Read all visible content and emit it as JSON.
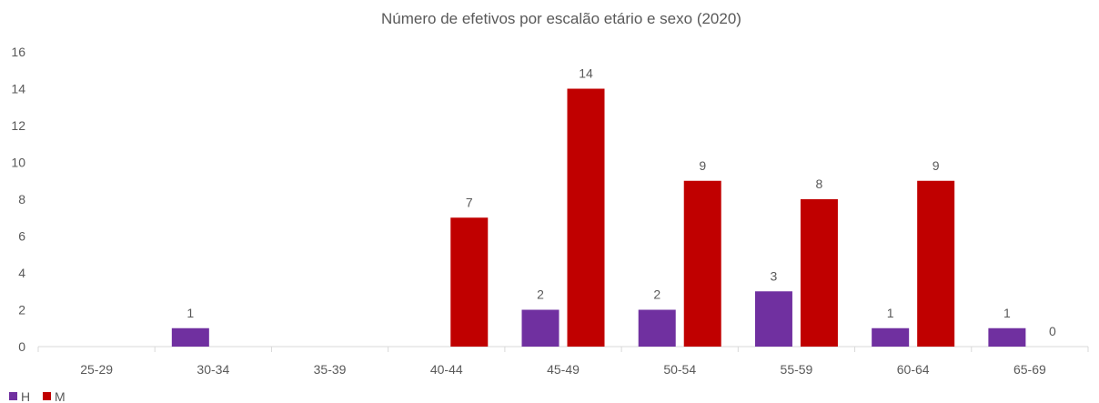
{
  "chart_data": {
    "type": "bar",
    "title": "Número de efetivos por escalão etário e sexo (2020)",
    "categories": [
      "25-29",
      "30-34",
      "35-39",
      "40-44",
      "45-49",
      "50-54",
      "55-59",
      "60-64",
      "65-69"
    ],
    "series": [
      {
        "name": "H",
        "color": "#7030A0",
        "values": [
          null,
          1,
          null,
          null,
          2,
          2,
          3,
          1,
          1
        ],
        "labels": [
          "",
          "1",
          "",
          "",
          "2",
          "2",
          "3",
          "1",
          "1"
        ]
      },
      {
        "name": "M",
        "color": "#C00000",
        "values": [
          null,
          null,
          null,
          7,
          14,
          9,
          8,
          9,
          0
        ],
        "labels": [
          "",
          "",
          "",
          "7",
          "14",
          "9",
          "8",
          "9",
          "0"
        ]
      }
    ],
    "ylim": [
      0,
      16
    ],
    "yticks": [
      "0",
      "2",
      "4",
      "6",
      "8",
      "10",
      "12",
      "14",
      "16"
    ],
    "grid": false,
    "legend_position": "bottom-left"
  }
}
